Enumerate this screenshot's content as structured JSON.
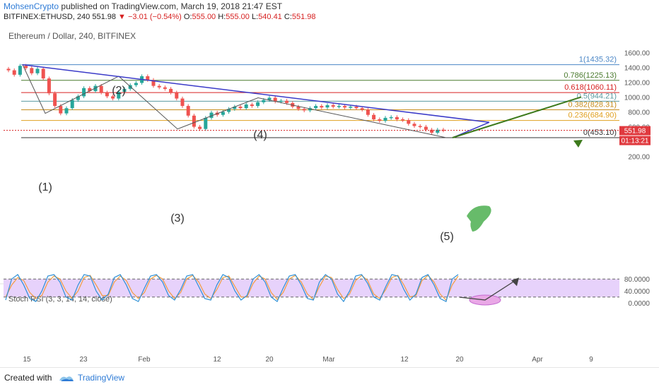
{
  "header": {
    "author": "MohsenCrypto",
    "published": "published on TradingView.com, March 19, 2018 21:47 EST",
    "symbol": "BITFINEX:ETHUSD, 240",
    "last": "551.98",
    "change": "−3.01 (−0.54%)",
    "o_label": "O:",
    "o": "555.00",
    "h_label": "H:",
    "h": "555.00",
    "l_label": "L:",
    "l": "540.41",
    "c_label": "C:",
    "c": "551.98"
  },
  "footer": {
    "created": "Created with",
    "brand": "TradingView"
  },
  "chart_data": {
    "type": "candlestick",
    "title": "Ethereum / Dollar, 240, BITFINEX",
    "colors": {
      "up": "#26a69a",
      "down": "#ef5350"
    },
    "y_axis": {
      "ticks": [
        1600,
        1400,
        1200,
        1000,
        800,
        600,
        400,
        200
      ],
      "labels": [
        "1600.00",
        "1400.00",
        "1200.00",
        "1000.00",
        "800.00",
        "600.00",
        "400.00",
        "200.00"
      ]
    },
    "x_axis": {
      "labels": [
        "15",
        "23",
        "Feb",
        "12",
        "20",
        "Mar",
        "12",
        "20",
        "Apr",
        "9"
      ]
    },
    "price_tag": "551.98",
    "countdown": "01:13:21",
    "price_path": [
      [
        1360
      ],
      [
        1300
      ],
      [
        1420
      ],
      [
        1390
      ],
      [
        1320
      ],
      [
        1380
      ],
      [
        1250
      ],
      [
        1050
      ],
      [
        880
      ],
      [
        780
      ],
      [
        850
      ],
      [
        960
      ],
      [
        1010
      ],
      [
        1120
      ],
      [
        1080
      ],
      [
        1150
      ],
      [
        1060
      ],
      [
        1010
      ],
      [
        980
      ],
      [
        1070
      ],
      [
        1110
      ],
      [
        1160
      ],
      [
        1190
      ],
      [
        1280
      ],
      [
        1230
      ],
      [
        1150
      ],
      [
        1130
      ],
      [
        1110
      ],
      [
        1060
      ],
      [
        980
      ],
      [
        880
      ],
      [
        750
      ],
      [
        600
      ],
      [
        570
      ],
      [
        720
      ],
      [
        790
      ],
      [
        760
      ],
      [
        800
      ],
      [
        840
      ],
      [
        870
      ],
      [
        850
      ],
      [
        900
      ],
      [
        880
      ],
      [
        930
      ],
      [
        960
      ],
      [
        990
      ],
      [
        940
      ],
      [
        950
      ],
      [
        920
      ],
      [
        870
      ],
      [
        840
      ],
      [
        820
      ],
      [
        850
      ],
      [
        880
      ],
      [
        860
      ],
      [
        890
      ],
      [
        870
      ],
      [
        880
      ],
      [
        860
      ],
      [
        870
      ],
      [
        850
      ],
      [
        830
      ],
      [
        760
      ],
      [
        700
      ],
      [
        680
      ],
      [
        720
      ],
      [
        730
      ],
      [
        700
      ],
      [
        690
      ],
      [
        640
      ],
      [
        610
      ],
      [
        600
      ],
      [
        560
      ],
      [
        520
      ],
      [
        560
      ],
      [
        551.98
      ]
    ],
    "fibonacci": [
      {
        "ratio": "1",
        "value": "1435.32",
        "label": "1(1435.32)",
        "color": "#4a86c6",
        "price": 1435.32
      },
      {
        "ratio": "0.786",
        "value": "1225.13",
        "label": "0.786(1225.13)",
        "color": "#4a7a2e",
        "price": 1225.13
      },
      {
        "ratio": "0.618",
        "value": "1060.11",
        "label": "0.618(1060.11)",
        "color": "#d62020",
        "price": 1060.11
      },
      {
        "ratio": "0.5",
        "value": "944.21",
        "label": "0.5(944.21)",
        "color": "#5a9aa0",
        "price": 944.21
      },
      {
        "ratio": "0.382",
        "value": "828.31",
        "label": "0.382(828.31)",
        "color": "#c68c1c",
        "price": 828.31
      },
      {
        "ratio": "0.236",
        "value": "684.90",
        "label": "0.236(684.90)",
        "color": "#e0a020",
        "price": 684.9
      },
      {
        "ratio": "0",
        "value": "453.10",
        "label": "0(453.10)",
        "color": "#333333",
        "price": 453.1
      }
    ],
    "wave_labels": [
      "(1)",
      "(2)",
      "(3)",
      "(4)",
      "(5)"
    ],
    "wave_points": [
      {
        "label": "(1)",
        "price": 780
      },
      {
        "label": "(2)",
        "price": 1280
      },
      {
        "label": "(3)",
        "price": 570
      },
      {
        "label": "(4)",
        "price": 990
      },
      {
        "label": "(5)",
        "price": 453.1
      }
    ],
    "trendline": {
      "from_price": 1435.32,
      "to_price": 660
    },
    "forecast": {
      "from_price": 453.1,
      "to_price": 1000
    },
    "rsi": {
      "title": "Stoch RSI (3, 3, 14, 14, close)",
      "ticks": [
        "80.0000",
        "40.0000",
        "0.0000"
      ],
      "tick_values": [
        80,
        40,
        0
      ],
      "upper": 80,
      "lower": 20,
      "k": [
        10,
        80,
        95,
        60,
        15,
        5,
        40,
        90,
        95,
        70,
        20,
        10,
        60,
        95,
        90,
        40,
        10,
        30,
        85,
        95,
        60,
        15,
        5,
        50,
        90,
        95,
        70,
        25,
        10,
        45,
        90,
        95,
        55,
        15,
        10,
        60,
        95,
        85,
        40,
        10,
        25,
        80,
        95,
        70,
        20,
        5,
        50,
        90,
        95,
        60,
        15,
        10,
        70,
        95,
        80,
        30,
        5,
        40,
        90,
        95,
        65,
        20,
        10,
        55,
        95,
        90,
        45,
        10,
        30,
        85,
        95,
        60,
        15,
        5,
        80,
        95
      ],
      "d": [
        20,
        60,
        85,
        75,
        35,
        15,
        25,
        70,
        90,
        80,
        40,
        15,
        40,
        85,
        92,
        60,
        25,
        25,
        70,
        90,
        75,
        35,
        15,
        35,
        80,
        92,
        80,
        40,
        15,
        35,
        80,
        92,
        70,
        30,
        15,
        45,
        85,
        90,
        55,
        20,
        20,
        65,
        90,
        80,
        35,
        12,
        35,
        80,
        92,
        70,
        30,
        12,
        55,
        90,
        85,
        45,
        15,
        30,
        75,
        92,
        75,
        30,
        15,
        45,
        85,
        92,
        60,
        20,
        25,
        75,
        92,
        70,
        30,
        10,
        60,
        90
      ],
      "forecast_low": 10,
      "forecast_end": 80
    }
  }
}
